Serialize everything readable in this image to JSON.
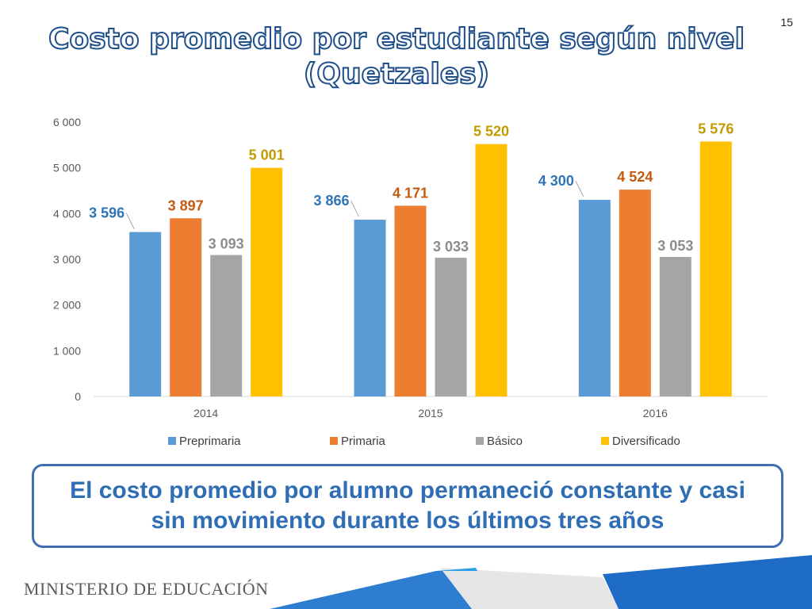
{
  "slide": {
    "page_number": "15",
    "title_line1": "Costo promedio por estudiante según nivel",
    "title_line2": "(Quetzales)",
    "callout": "El costo promedio por alumno permaneció constante y casi sin movimiento durante los últimos tres años",
    "footer_logo": "MINISTERIO DE EDUCACIÓN"
  },
  "chart_data": {
    "type": "bar",
    "categories": [
      "2014",
      "2015",
      "2016"
    ],
    "series": [
      {
        "name": "Preprimaria",
        "values": [
          3596,
          3866,
          4300
        ],
        "labels": [
          "3 596",
          "3 866",
          "4 300"
        ],
        "color": "#5b9bd5",
        "label_color": "#2e75b6"
      },
      {
        "name": "Primaria",
        "values": [
          3897,
          4171,
          4524
        ],
        "labels": [
          "3 897",
          "4 171",
          "4 524"
        ],
        "color": "#ed7d31",
        "label_color": "#c55a11"
      },
      {
        "name": "Básico",
        "values": [
          3093,
          3033,
          3053
        ],
        "labels": [
          "3 093",
          "3 033",
          "3 053"
        ],
        "color": "#a5a5a5",
        "label_color": "#8c8c8c"
      },
      {
        "name": "Diversificado",
        "values": [
          5001,
          5520,
          5576
        ],
        "labels": [
          "5 001",
          "5 520",
          "5 576"
        ],
        "color": "#ffc000",
        "label_color": "#c49a00"
      }
    ],
    "ylim": [
      0,
      6000
    ],
    "yticks": [
      {
        "value": 0,
        "label": "0"
      },
      {
        "value": 1000,
        "label": "1 000"
      },
      {
        "value": 2000,
        "label": "2 000"
      },
      {
        "value": 3000,
        "label": "3 000"
      },
      {
        "value": 4000,
        "label": "4 000"
      },
      {
        "value": 5000,
        "label": "5 000"
      },
      {
        "value": 6000,
        "label": "6 000"
      }
    ],
    "legend_position": "bottom",
    "grid": false
  }
}
